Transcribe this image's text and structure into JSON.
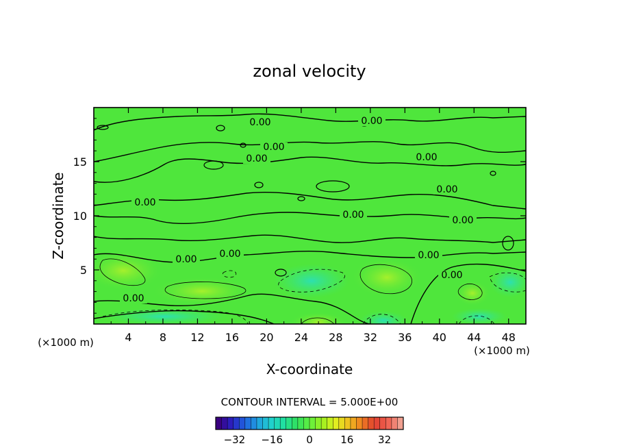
{
  "chart_data": {
    "type": "heatmap",
    "title": "zonal velocity",
    "xlabel": "X-coordinate",
    "ylabel": "Z-coordinate",
    "x_unit": "(×1000 m)",
    "z_unit": "(×1000 m)",
    "xlim": [
      0,
      50
    ],
    "ylim": [
      0,
      20
    ],
    "x_ticks": [
      4,
      8,
      12,
      16,
      20,
      24,
      28,
      32,
      36,
      40,
      44,
      48
    ],
    "y_ticks": [
      5,
      10,
      15
    ],
    "contour_interval_text": "CONTOUR INTERVAL = 5.000E+00",
    "contour_labels": [
      "0.00",
      "0.00",
      "0.00",
      "0.00",
      "0.00",
      "0.00",
      "0.00",
      "0.00",
      "0.00",
      "0.00",
      "0.00",
      "0.00",
      "0.00",
      "0.00"
    ],
    "colorbar": {
      "range": [
        -40,
        40
      ],
      "ticks": [
        -32,
        -16,
        0,
        16,
        32
      ],
      "tick_labels": [
        "−32",
        "−16",
        "0",
        "16",
        "32"
      ],
      "colors": [
        "#3a0080",
        "#2a20c0",
        "#2060e0",
        "#20a0e0",
        "#20d0d0",
        "#20e0a0",
        "#30e060",
        "#60f040",
        "#a0f020",
        "#e0f020",
        "#f0c020",
        "#f08020",
        "#e04030",
        "#f06050",
        "#f0a090"
      ]
    }
  }
}
